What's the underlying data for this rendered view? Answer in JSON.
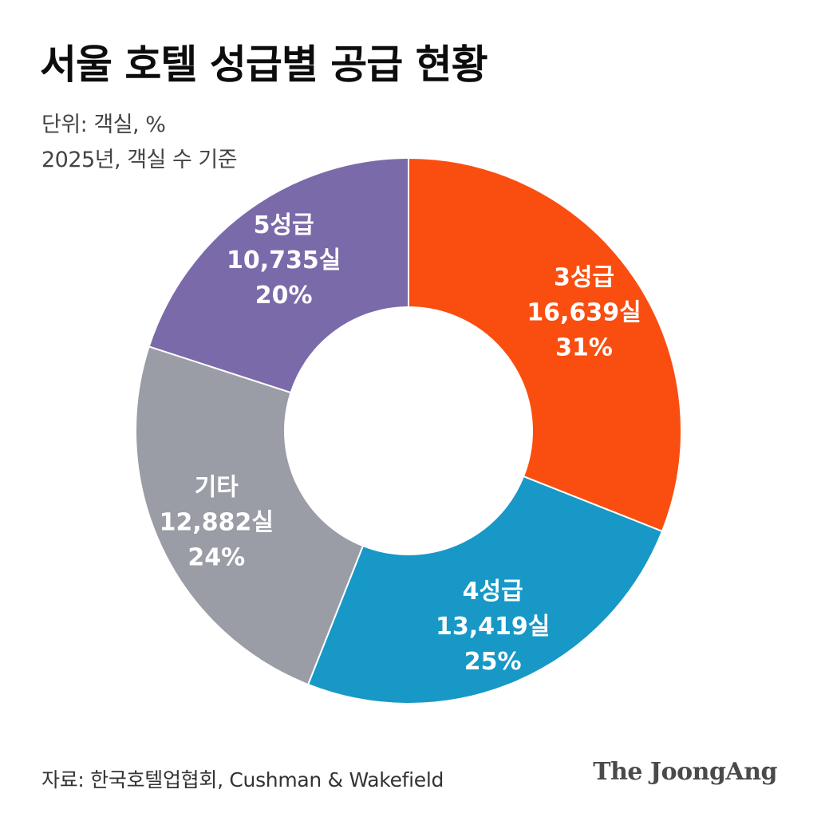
{
  "header": {
    "title": "서울 호텔 성급별 공급 현황",
    "unit": "단위: 객실, %",
    "basis": "2025년, 객실 수 기준"
  },
  "footer": {
    "source": "자료: 한국호텔업협회, Cushman & Wakefield",
    "brand": "The JoongAng"
  },
  "chart_data": {
    "type": "pie",
    "title": "서울 호텔 성급별 공급 현황",
    "subtitle": "단위: 객실, %",
    "note": "2025년, 객실 수 기준",
    "donut": true,
    "slices": [
      {
        "name": "3성급",
        "value": 16639,
        "value_label": "16,639실",
        "percent": 31,
        "percent_label": "31%",
        "color": "#f94e10"
      },
      {
        "name": "4성급",
        "value": 13419,
        "value_label": "13,419실",
        "percent": 25,
        "percent_label": "25%",
        "color": "#1798c6"
      },
      {
        "name": "기타",
        "value": 12882,
        "value_label": "12,882실",
        "percent": 24,
        "percent_label": "24%",
        "color": "#9a9ca6"
      },
      {
        "name": "5성급",
        "value": 10735,
        "value_label": "10,735실",
        "percent": 20,
        "percent_label": "20%",
        "color": "#7b6aa9"
      }
    ]
  }
}
